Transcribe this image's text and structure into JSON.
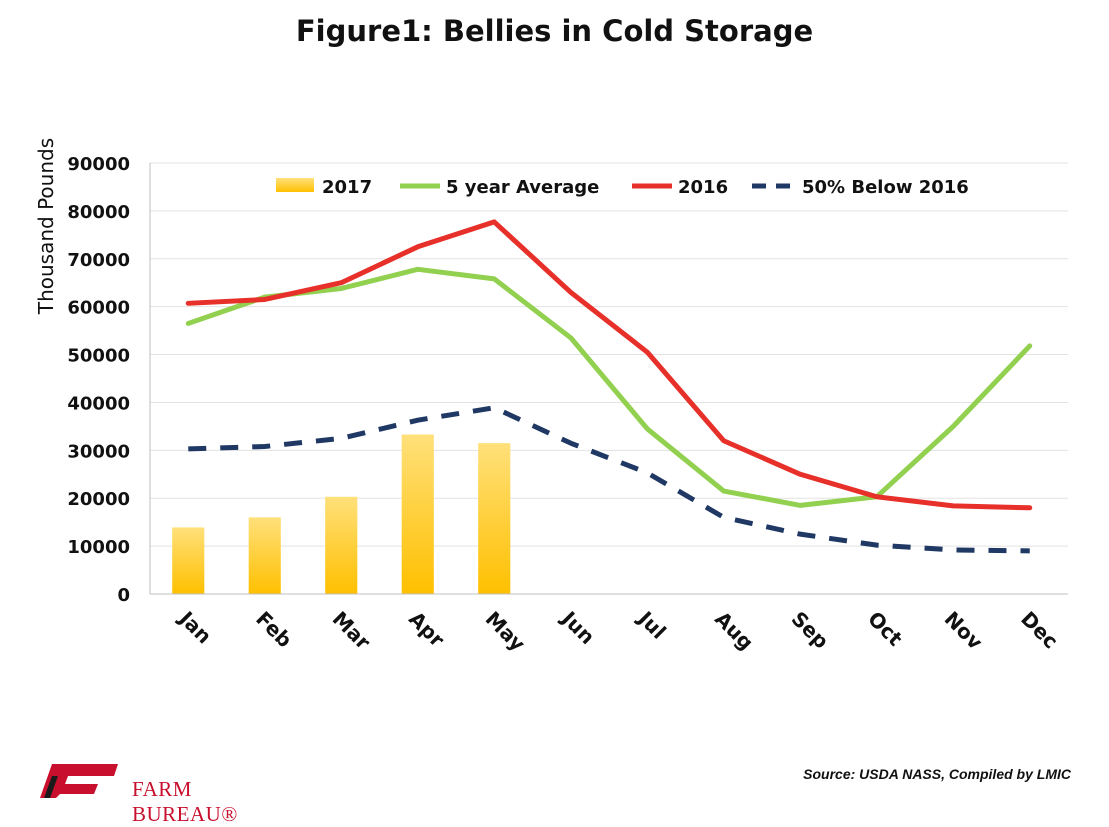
{
  "chart_data": {
    "type": "bar+line",
    "title": "Figure1: Bellies in Cold Storage",
    "ylabel": "Thousand Pounds",
    "xlabel": "",
    "ylim": [
      0,
      90000
    ],
    "yticks": [
      "0",
      "10000",
      "20000",
      "30000",
      "40000",
      "50000",
      "60000",
      "70000",
      "80000",
      "90000"
    ],
    "categories": [
      "Jan",
      "Feb",
      "Mar",
      "Apr",
      "May",
      "Jun",
      "Jul",
      "Aug",
      "Sep",
      "Oct",
      "Nov",
      "Dec"
    ],
    "legend_position": "top",
    "grid": "horizontal",
    "series": [
      {
        "name": "2017",
        "kind": "bar",
        "color": "#ffc000",
        "color_light": "#ffe07a",
        "values": [
          13900,
          16000,
          20300,
          33300,
          31500,
          null,
          null,
          null,
          null,
          null,
          null,
          null
        ]
      },
      {
        "name": "5 year Average",
        "kind": "line",
        "style": "solid",
        "color": "#92d050",
        "values": [
          56500,
          62000,
          63800,
          67800,
          65800,
          53500,
          34500,
          21500,
          18500,
          20300,
          35000,
          51800
        ]
      },
      {
        "name": "2016",
        "kind": "line",
        "style": "solid",
        "color": "#e8302a",
        "values": [
          60700,
          61500,
          65000,
          72500,
          77700,
          63000,
          50500,
          32000,
          25000,
          20300,
          18400,
          18000
        ]
      },
      {
        "name": "50% Below 2016",
        "kind": "line",
        "style": "dashed",
        "color": "#1f3864",
        "values": [
          30300,
          30800,
          32500,
          36300,
          38900,
          31500,
          25300,
          16000,
          12500,
          10200,
          9200,
          9000
        ]
      }
    ]
  },
  "footer": {
    "source": "Source: USDA NASS, Compiled by LMIC",
    "logo_text": "FARM BUREAU®"
  }
}
